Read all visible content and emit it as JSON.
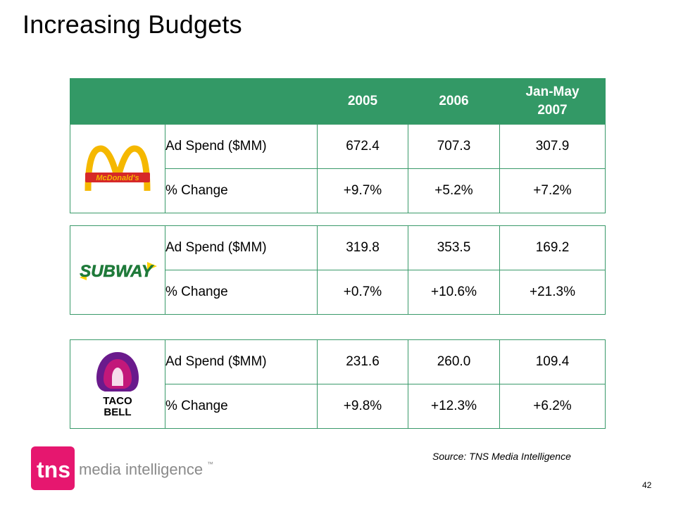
{
  "slide": {
    "title": "Increasing Budgets",
    "source": "Source: TNS Media Intelligence",
    "page_number": "42",
    "brand_logo": {
      "name": "tns-media-intelligence-logo",
      "text_mark": "tns",
      "text_sub": "media intelligence",
      "tm": "™"
    }
  },
  "table": {
    "headers": [
      "",
      "",
      "2005",
      "2006",
      "Jan-May 2007"
    ],
    "brands": [
      {
        "logo": "mcdonalds-logo",
        "logo_text": "McDonald's",
        "rows": [
          {
            "label": "Ad Spend ($MM)",
            "values": [
              "672.4",
              "707.3",
              "307.9"
            ]
          },
          {
            "label": "% Change",
            "values": [
              "+9.7%",
              "+5.2%",
              "+7.2%"
            ]
          }
        ]
      },
      {
        "logo": "subway-logo",
        "logo_text": "SUBWAY",
        "rows": [
          {
            "label": "Ad Spend ($MM)",
            "values": [
              "319.8",
              "353.5",
              "169.2"
            ]
          },
          {
            "label": "% Change",
            "values": [
              "+0.7%",
              "+10.6%",
              "+21.3%"
            ]
          }
        ]
      },
      {
        "logo": "taco-bell-logo",
        "logo_text": [
          "TACO",
          "BELL"
        ],
        "rows": [
          {
            "label": "Ad Spend ($MM)",
            "values": [
              "231.6",
              "260.0",
              "109.4"
            ]
          },
          {
            "label": "% Change",
            "values": [
              "+9.8%",
              "+12.3%",
              "+6.2%"
            ]
          }
        ]
      }
    ]
  },
  "colors": {
    "header_green": "#339966",
    "mcd_gold": "#f5b800",
    "mcd_red": "#d62828",
    "subway_green": "#1f7a3a",
    "subway_yellow": "#ffd200",
    "taco_purple": "#6a1a8c",
    "taco_magenta": "#c2187a",
    "tns_pink": "#e6176f"
  }
}
